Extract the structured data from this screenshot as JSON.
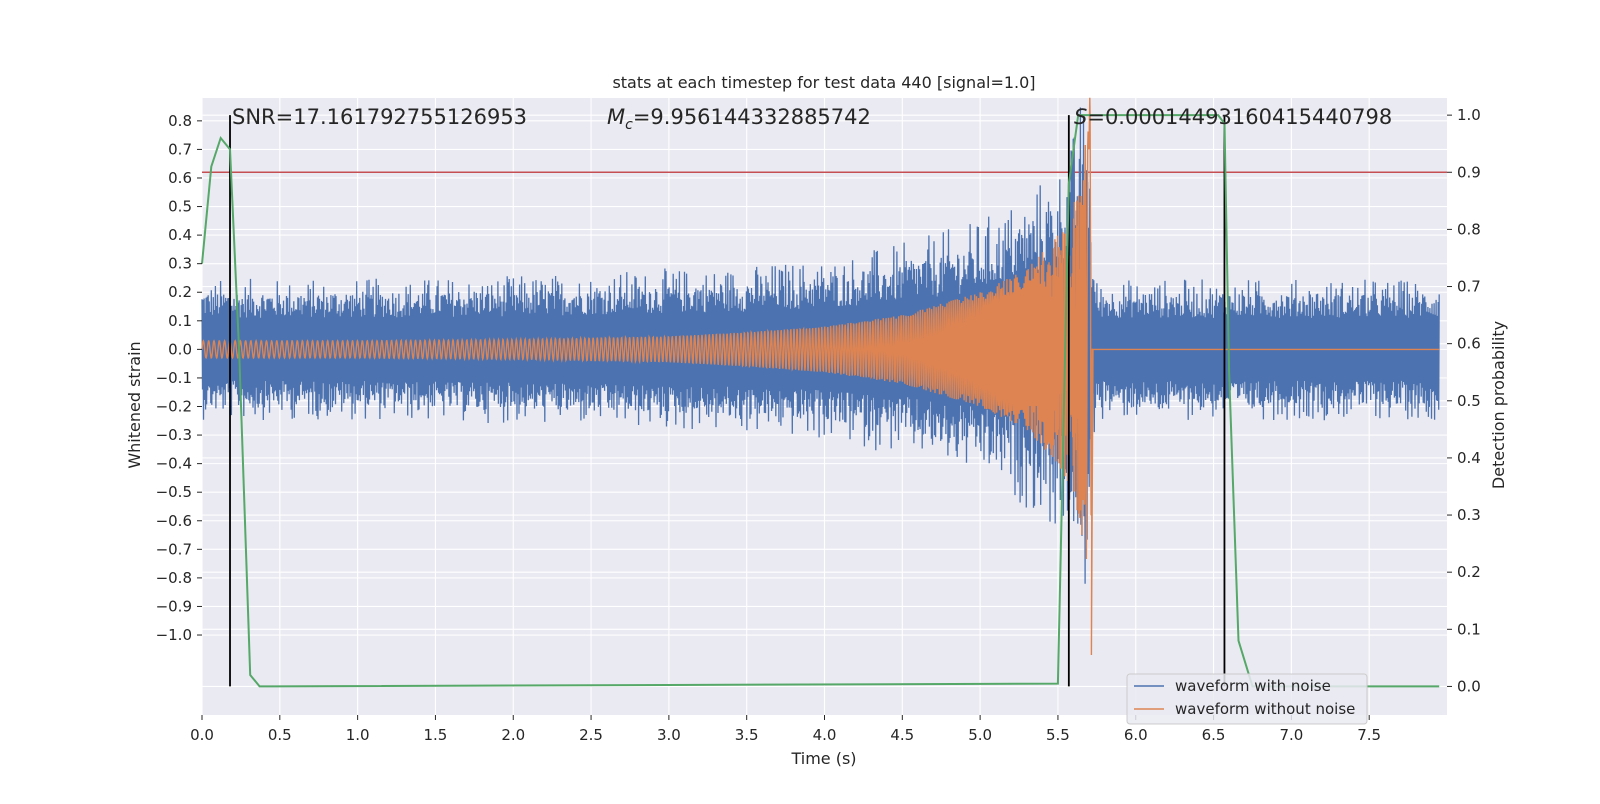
{
  "chart_data": {
    "type": "line",
    "title": "stats at each timestep for test data 440 [signal=1.0]",
    "xlabel": "Time (s)",
    "ylabel_left": "Whitened strain",
    "ylabel_right": "Detection probability",
    "xlim": [
      0.0,
      8.0
    ],
    "ylim_left": [
      -1.28,
      0.88
    ],
    "ylim_right": [
      -0.05,
      1.03
    ],
    "x_ticks": [
      "0.0",
      "0.5",
      "1.0",
      "1.5",
      "2.0",
      "2.5",
      "3.0",
      "3.5",
      "4.0",
      "4.5",
      "5.0",
      "5.5",
      "6.0",
      "6.5",
      "7.0",
      "7.5"
    ],
    "x_tick_values": [
      0,
      0.5,
      1,
      1.5,
      2,
      2.5,
      3,
      3.5,
      4,
      4.5,
      5,
      5.5,
      6,
      6.5,
      7,
      7.5
    ],
    "y_left_ticks": [
      "0.8",
      "0.7",
      "0.6",
      "0.5",
      "0.4",
      "0.3",
      "0.2",
      "0.1",
      "0.0",
      "−0.1",
      "−0.2",
      "−0.3",
      "−0.4",
      "−0.5",
      "−0.6",
      "−0.7",
      "−0.8",
      "−0.9",
      "−1.0"
    ],
    "y_left_tick_values": [
      0.8,
      0.7,
      0.6,
      0.5,
      0.4,
      0.3,
      0.2,
      0.1,
      0.0,
      -0.1,
      -0.2,
      -0.3,
      -0.4,
      -0.5,
      -0.6,
      -0.7,
      -0.8,
      -0.9,
      -1.0
    ],
    "y_right_ticks": [
      "1.0",
      "0.9",
      "0.8",
      "0.7",
      "0.6",
      "0.5",
      "0.4",
      "0.3",
      "0.2",
      "0.1",
      "0.0"
    ],
    "y_right_tick_values": [
      1.0,
      0.9,
      0.8,
      0.7,
      0.6,
      0.5,
      0.4,
      0.3,
      0.2,
      0.1,
      0.0
    ],
    "annotations": {
      "snr": "SNR=17.161792755126953",
      "mc_symbol": "M",
      "mc_subscript": "c",
      "mc_value": "=9.956144332885742",
      "s_symbol": "S",
      "s_value": "=0.00014493160415440798"
    },
    "threshold": 0.9,
    "vertical_markers": [
      0.18,
      5.57,
      6.57
    ],
    "detection_probability": {
      "x": [
        0.0,
        0.06,
        0.12,
        0.18,
        0.24,
        0.31,
        0.37,
        0.45,
        5.5,
        5.57,
        5.63,
        5.7,
        6.45,
        6.53,
        6.57,
        6.6,
        6.66,
        6.75,
        7.95
      ],
      "y": [
        0.74,
        0.91,
        0.96,
        0.94,
        0.58,
        0.02,
        0.0,
        0.0,
        0.005,
        0.88,
        1.0,
        1.0,
        1.0,
        1.0,
        0.985,
        0.55,
        0.08,
        0.0,
        0.0
      ]
    },
    "noise_envelope": {
      "x": [
        0.0,
        1.0,
        2.0,
        3.0,
        3.5,
        4.0,
        4.5,
        5.0,
        5.3,
        5.5,
        5.6,
        5.65,
        5.7,
        5.72,
        5.75,
        8.0
      ],
      "amp": [
        0.2,
        0.2,
        0.21,
        0.23,
        0.24,
        0.26,
        0.3,
        0.37,
        0.45,
        0.53,
        0.62,
        0.72,
        0.7,
        0.3,
        0.2,
        0.2
      ]
    },
    "template_envelope": {
      "x": [
        0.0,
        1.0,
        2.0,
        3.0,
        3.5,
        4.0,
        4.5,
        5.0,
        5.3,
        5.5,
        5.6,
        5.65,
        5.7,
        5.71,
        5.72
      ],
      "amp": [
        0.03,
        0.03,
        0.035,
        0.045,
        0.06,
        0.08,
        0.12,
        0.2,
        0.28,
        0.4,
        0.5,
        0.65,
        0.78,
        1.0,
        0.02
      ]
    },
    "legend": {
      "position": "lower-right",
      "entries": [
        {
          "label": "waveform with noise",
          "color": "#4c72b0"
        },
        {
          "label": "waveform without noise",
          "color": "#dd8452"
        }
      ]
    },
    "colors": {
      "plot_bg": "#eaeaf2",
      "grid": "#ffffff",
      "noise": "#4c72b0",
      "template": "#dd8452",
      "probability": "#55a868",
      "threshold": "#c44e52",
      "marker": "#000000"
    }
  }
}
